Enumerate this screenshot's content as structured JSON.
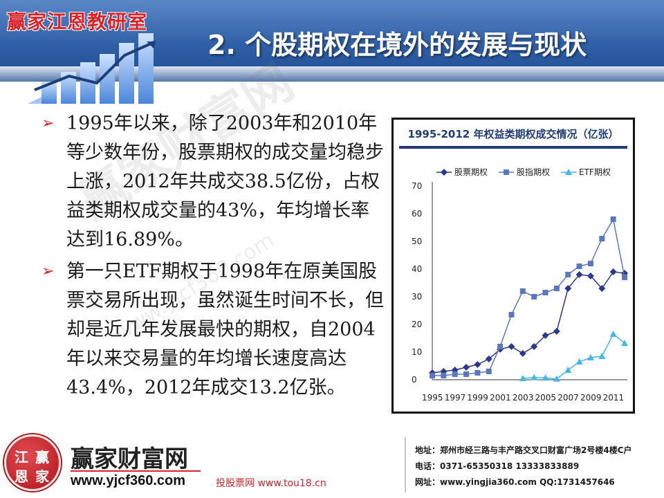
{
  "header": {
    "brand": "赢家江恩教研室",
    "title": "2. 个股期权在境外的发展与现状"
  },
  "bullets": [
    "1995年以来，除了2003年和2010年等少数年份，股票期权的成交量均稳步上涨，2012年共成交38.5亿份，占权益类期权成交量的43%，年均增长率达到16.89%。",
    "第一只ETF期权于1998年在原美国股票交易所出现，虽然诞生时间不长，但却是近几年发展最快的期权，自2004年以来交易量的年均增长速度高达43.4%，2012年成交13.2亿张。"
  ],
  "watermark": {
    "line1": "赢家财富网",
    "line2": "www.yjcf360.com"
  },
  "chart_data": {
    "type": "line",
    "title": "1995-2012 年权益类期权成交情况（亿张）",
    "x": [
      1995,
      1996,
      1997,
      1998,
      1999,
      2000,
      2001,
      2002,
      2003,
      2004,
      2005,
      2006,
      2007,
      2008,
      2009,
      2010,
      2011,
      2012
    ],
    "x_tick_labels": [
      "1995",
      "1997",
      "1999",
      "2001",
      "2003",
      "2005",
      "2007",
      "2009",
      "2011"
    ],
    "ylim": [
      0,
      70
    ],
    "y_ticks": [
      0,
      10,
      20,
      30,
      40,
      50,
      60,
      70
    ],
    "legend_position": "top",
    "grid": false,
    "series": [
      {
        "name": "股票期权",
        "marker": "diamond",
        "color": "#2b3a8c",
        "values": [
          2.5,
          3,
          3.5,
          4.5,
          5.5,
          7.5,
          11,
          12,
          9.5,
          12,
          16,
          17.5,
          33,
          38,
          37.5,
          33,
          39,
          38.5
        ]
      },
      {
        "name": "股指期权",
        "marker": "square",
        "color": "#5a78c0",
        "values": [
          1.5,
          1.5,
          2,
          2,
          2.5,
          3,
          12,
          23.5,
          32,
          30,
          31.5,
          33,
          38,
          41,
          42,
          51,
          58,
          37
        ]
      },
      {
        "name": "ETF期权",
        "marker": "triangle",
        "color": "#45b6e6",
        "values": [
          null,
          null,
          null,
          null,
          null,
          null,
          null,
          null,
          0.5,
          0.8,
          0.7,
          0.3,
          3.5,
          6.5,
          8,
          8.5,
          16.5,
          13.2
        ]
      }
    ]
  },
  "footer": {
    "seal_chars": [
      "江",
      "赢",
      "恩",
      "家"
    ],
    "name": "赢家财富网",
    "url": "www.yjcf360.com",
    "link": "投股票网 www.tou18.cn",
    "address": "地址：郑州市经三路与丰产路交叉口财富广场2号楼4楼C户",
    "phone": "电话：0371-65350318 13333833889",
    "website": "网址：www.yingjia360.com QQ:1731457646"
  }
}
